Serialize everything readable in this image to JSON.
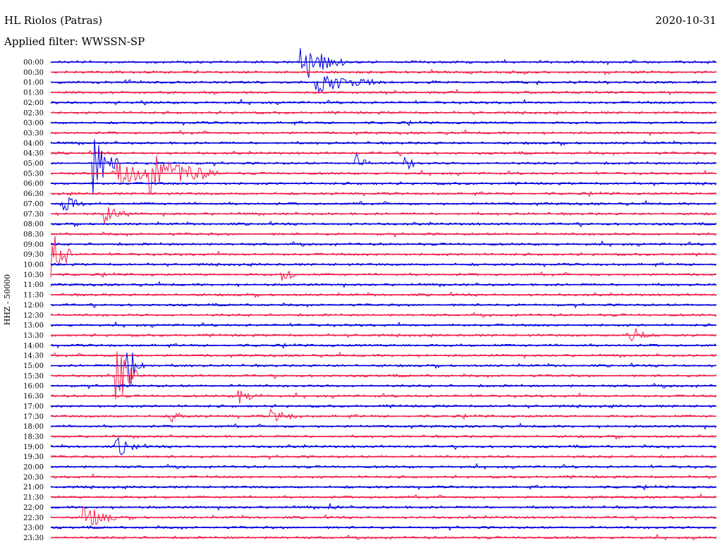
{
  "header": {
    "station": "HL Riolos (Patras)",
    "date": "2020-10-31",
    "filter": "Applied filter: WWSSN-SP"
  },
  "colors": {
    "blue": "#0000e0",
    "red": "#f0204a"
  },
  "chart_data": {
    "type": "line",
    "title": "HL Riolos (Patras)",
    "subtitle": "Applied filter: WWSSN-SP",
    "ylabel": "HHZ - 50000",
    "xlabel": "",
    "time_labels": [
      "00:00",
      "00:30",
      "01:00",
      "01:30",
      "02:00",
      "02:30",
      "03:00",
      "03:30",
      "04:00",
      "04:30",
      "05:00",
      "05:30",
      "06:00",
      "06:30",
      "07:00",
      "07:30",
      "08:00",
      "08:30",
      "09:00",
      "09:30",
      "10:00",
      "10:30",
      "11:00",
      "11:30",
      "12:00",
      "12:30",
      "13:00",
      "13:30",
      "14:00",
      "14:30",
      "15:00",
      "15:30",
      "16:00",
      "16:30",
      "17:00",
      "17:30",
      "18:00",
      "18:30",
      "19:00",
      "19:30",
      "20:00",
      "20:30",
      "21:00",
      "21:30",
      "22:00",
      "22:30",
      "23:00",
      "23:30"
    ],
    "trace_colors": [
      "blue",
      "red"
    ],
    "row_minutes": 30,
    "events": [
      {
        "row": 0,
        "minute": 11.3,
        "amplitude": 3.5,
        "duration": 2.0
      },
      {
        "row": 2,
        "minute": 12.0,
        "amplitude": 1.8,
        "duration": 3.0
      },
      {
        "row": 10,
        "minute": 2.0,
        "amplitude": 5.5,
        "duration": 1.0
      },
      {
        "row": 10,
        "minute": 13.8,
        "amplitude": 1.5,
        "duration": 0.6
      },
      {
        "row": 10,
        "minute": 16.0,
        "amplitude": 1.5,
        "duration": 0.6
      },
      {
        "row": 11,
        "minute": 3.0,
        "amplitude": 2.0,
        "duration": 4.0
      },
      {
        "row": 11,
        "minute": 4.5,
        "amplitude": 3.0,
        "duration": 3.0
      },
      {
        "row": 14,
        "minute": 0.5,
        "amplitude": 2.5,
        "duration": 1.0
      },
      {
        "row": 15,
        "minute": 2.5,
        "amplitude": 2.0,
        "duration": 1.0
      },
      {
        "row": 19,
        "minute": 0.0,
        "amplitude": 6.0,
        "duration": 1.0
      },
      {
        "row": 21,
        "minute": 10.5,
        "amplitude": 1.8,
        "duration": 0.5
      },
      {
        "row": 27,
        "minute": 26.0,
        "amplitude": 2.5,
        "duration": 1.0
      },
      {
        "row": 30,
        "minute": 3.5,
        "amplitude": 2.5,
        "duration": 0.8
      },
      {
        "row": 30,
        "minute": 3.5,
        "amplitude": 2.5,
        "duration": 0.8
      },
      {
        "row": 31,
        "minute": 3.0,
        "amplitude": 6.0,
        "duration": 1.0
      },
      {
        "row": 33,
        "minute": 8.5,
        "amplitude": 1.5,
        "duration": 1.0
      },
      {
        "row": 35,
        "minute": 5.5,
        "amplitude": 1.0,
        "duration": 0.6
      },
      {
        "row": 35,
        "minute": 10.0,
        "amplitude": 1.0,
        "duration": 1.5
      },
      {
        "row": 38,
        "minute": 3.0,
        "amplitude": 2.0,
        "duration": 1.0
      },
      {
        "row": 44,
        "minute": 12.5,
        "amplitude": 0.8,
        "duration": 0.5
      },
      {
        "row": 45,
        "minute": 1.5,
        "amplitude": 2.5,
        "duration": 1.5
      }
    ]
  }
}
